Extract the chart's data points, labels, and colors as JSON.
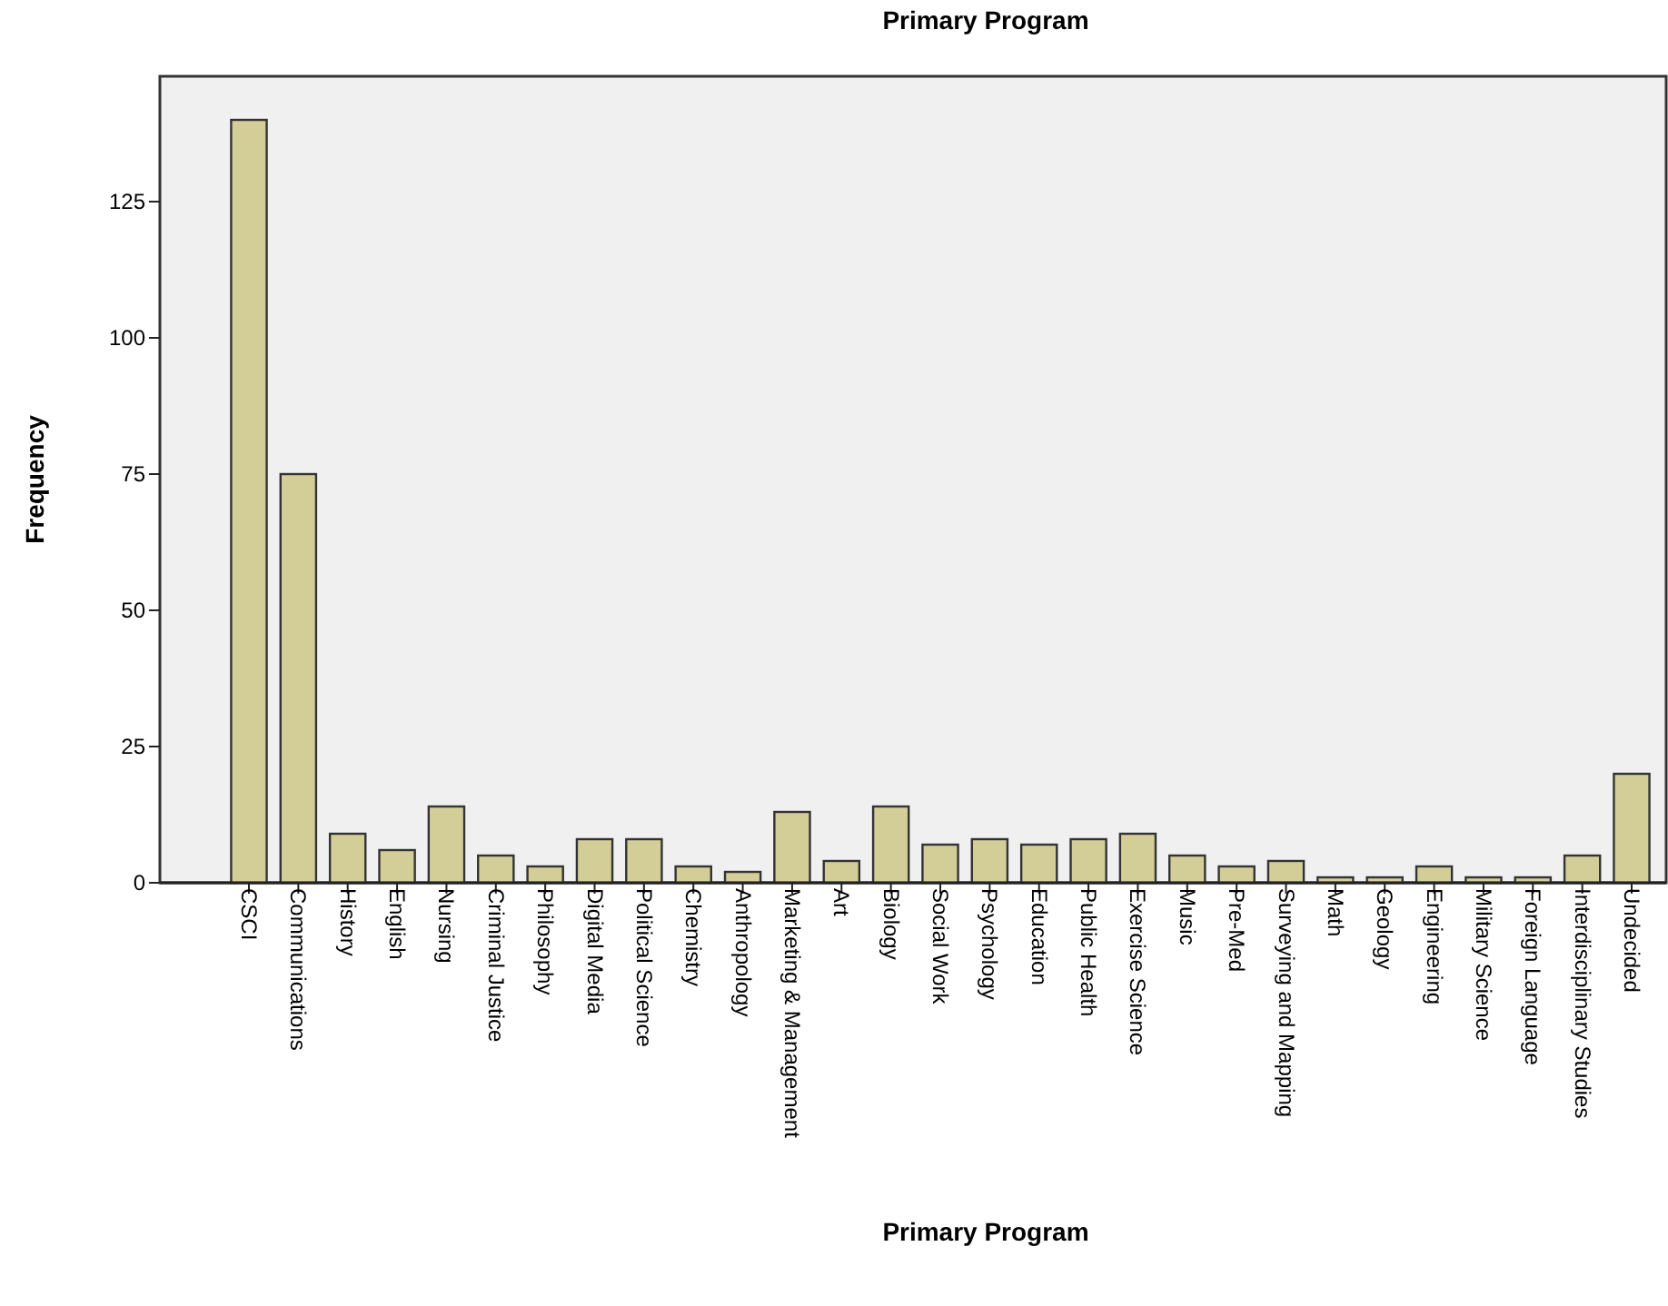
{
  "chart_data": {
    "type": "bar",
    "title": "Primary Program",
    "xlabel": "Primary Program",
    "ylabel": "Frequency",
    "categories": [
      "CSCI",
      "Communications",
      "History",
      "English",
      "Nursing",
      "Criminal Justice",
      "Philosophy",
      "Digital Media",
      "Political Science",
      "Chemistry",
      "Anthropology",
      "Marketing & Management",
      "Art",
      "Biology",
      "Social Work",
      "Psychology",
      "Education",
      "Public Health",
      "Exercise Science",
      "Music",
      "Pre-Med",
      "Surveying and Mapping",
      "Math",
      "Geology",
      "Engineering",
      "Military Science",
      "Foreign Language",
      "Interdisciplinary Studies",
      "Undecided"
    ],
    "values": [
      140,
      75,
      9,
      6,
      14,
      5,
      3,
      8,
      8,
      3,
      2,
      13,
      4,
      14,
      7,
      8,
      7,
      8,
      9,
      5,
      3,
      4,
      1,
      1,
      3,
      1,
      1,
      5,
      20
    ],
    "color": "#d3ce97",
    "ylim": [
      0,
      148
    ],
    "yticks": [
      0,
      25,
      50,
      75,
      100,
      125
    ],
    "grid": false
  }
}
